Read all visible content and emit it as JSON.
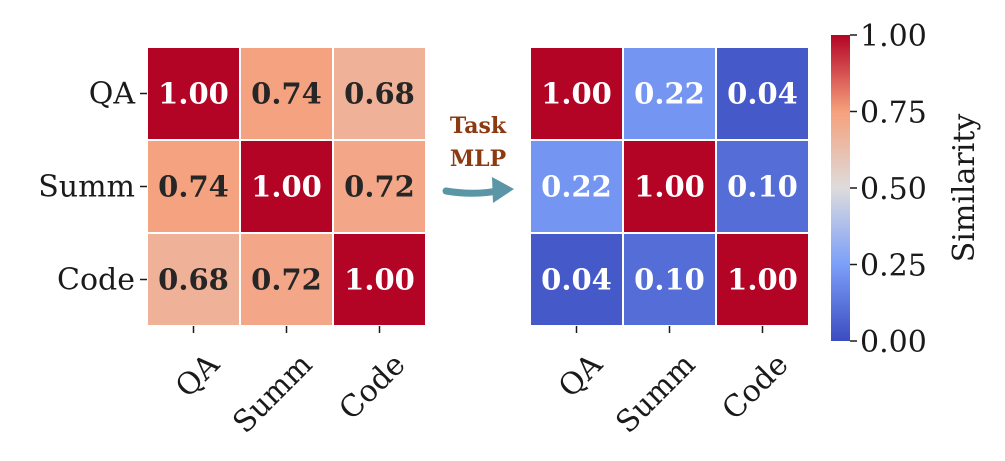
{
  "chart_data": [
    {
      "type": "heatmap",
      "title": "",
      "xlabel": "",
      "ylabel": "",
      "x_categories": [
        "QA",
        "Summ",
        "Code"
      ],
      "y_categories": [
        "QA",
        "Summ",
        "Code"
      ],
      "values": [
        [
          1.0,
          0.74,
          0.68
        ],
        [
          0.74,
          1.0,
          0.72
        ],
        [
          0.68,
          0.72,
          1.0
        ]
      ],
      "value_labels": [
        [
          "1.00",
          "0.74",
          "0.68"
        ],
        [
          "0.74",
          "1.00",
          "0.72"
        ],
        [
          "0.68",
          "0.72",
          "1.00"
        ]
      ],
      "colormap": "coolwarm",
      "vmin": 0.0,
      "vmax": 1.0
    },
    {
      "type": "heatmap",
      "title": "",
      "xlabel": "",
      "ylabel": "",
      "x_categories": [
        "QA",
        "Summ",
        "Code"
      ],
      "y_categories": [
        "QA",
        "Summ",
        "Code"
      ],
      "values": [
        [
          1.0,
          0.22,
          0.04
        ],
        [
          0.22,
          1.0,
          0.1
        ],
        [
          0.04,
          0.1,
          1.0
        ]
      ],
      "value_labels": [
        [
          "1.00",
          "0.22",
          "0.04"
        ],
        [
          "0.22",
          "1.00",
          "0.10"
        ],
        [
          "0.04",
          "0.10",
          "1.00"
        ]
      ],
      "colormap": "coolwarm",
      "vmin": 0.0,
      "vmax": 1.0
    }
  ],
  "arrow": {
    "line1": "Task",
    "line2": "MLP",
    "color": "#5b96a7"
  },
  "colorbar": {
    "label": "Similarity",
    "ticks": [
      "0.00",
      "0.25",
      "0.50",
      "0.75",
      "1.00"
    ],
    "tick_values": [
      0.0,
      0.25,
      0.5,
      0.75,
      1.0
    ]
  }
}
